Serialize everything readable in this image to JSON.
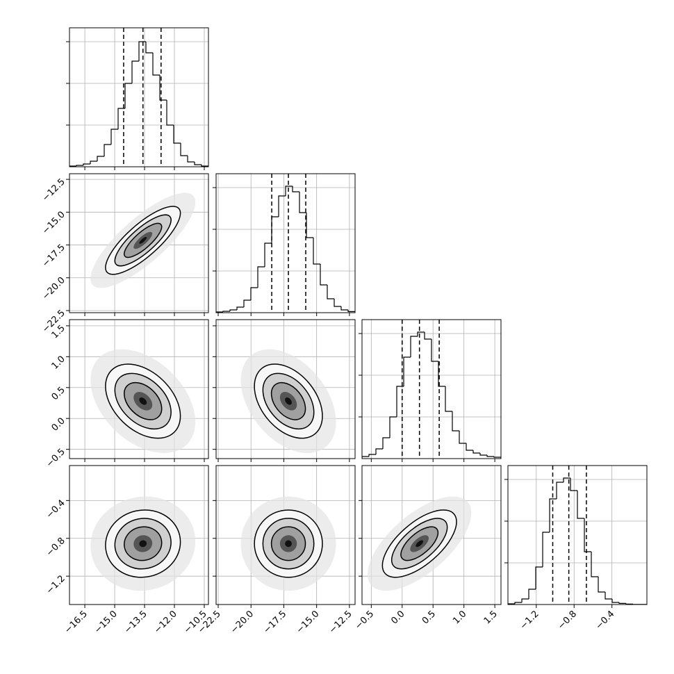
{
  "chart_data": {
    "type": "corner",
    "grid": true,
    "hist_ylim": [
      0,
      1000
    ],
    "hist_yticks": [
      300,
      600,
      900
    ],
    "parameters": [
      {
        "lim": [
          -17.27,
          -10.29
        ],
        "ticks": [
          {
            "value": -16.5,
            "label": "−16.5"
          },
          {
            "value": -15,
            "label": "−15.0"
          },
          {
            "value": -13.5,
            "label": "−13.5"
          },
          {
            "value": -12,
            "label": "−12.0"
          },
          {
            "value": -10.5,
            "label": "−10.5"
          }
        ],
        "quantiles": [
          -14.55,
          -13.58,
          -12.67
        ],
        "counts": [
          5,
          10,
          20,
          40,
          75,
          160,
          270,
          420,
          600,
          760,
          900,
          820,
          660,
          480,
          300,
          170,
          80,
          35,
          15,
          5
        ]
      },
      {
        "lim": [
          -22.66,
          -12.07
        ],
        "ticks": [
          {
            "value": -22.5,
            "label": "−22.5"
          },
          {
            "value": -20,
            "label": "−20.0"
          },
          {
            "value": -17.5,
            "label": "−17.5"
          },
          {
            "value": -15,
            "label": "−15.0"
          },
          {
            "value": -12.5,
            "label": "−12.5"
          }
        ],
        "quantiles": [
          -18.42,
          -17.15,
          -15.83
        ],
        "counts": [
          5,
          10,
          20,
          40,
          90,
          180,
          330,
          500,
          690,
          840,
          910,
          870,
          720,
          540,
          350,
          200,
          100,
          45,
          20,
          8
        ]
      },
      {
        "lim": [
          -0.65,
          1.6
        ],
        "ticks": [
          {
            "value": -0.5,
            "label": "−0.5"
          },
          {
            "value": 0,
            "label": "0.0"
          },
          {
            "value": 0.5,
            "label": "0.5"
          },
          {
            "value": 1,
            "label": "1.0"
          },
          {
            "value": 1.5,
            "label": "1.5"
          }
        ],
        "quantiles": [
          0.0,
          0.28,
          0.6
        ],
        "counts": [
          15,
          30,
          70,
          150,
          300,
          520,
          730,
          880,
          910,
          860,
          700,
          520,
          340,
          200,
          110,
          60,
          40,
          25,
          15,
          10
        ]
      },
      {
        "lim": [
          -1.5,
          -0.03
        ],
        "ticks": [
          {
            "value": -1.2,
            "label": "−1.2"
          },
          {
            "value": -0.8,
            "label": "−0.8"
          },
          {
            "value": -0.4,
            "label": "−0.4"
          }
        ],
        "quantiles": [
          -1.026,
          -0.856,
          -0.67
        ],
        "counts": [
          5,
          15,
          40,
          110,
          270,
          520,
          760,
          880,
          910,
          820,
          620,
          380,
          200,
          90,
          40,
          15,
          8,
          3,
          1,
          1
        ]
      }
    ],
    "panels": [
      {
        "x": 0,
        "y": 1,
        "correlation": 0.8
      },
      {
        "x": 0,
        "y": 2,
        "correlation": -0.4
      },
      {
        "x": 1,
        "y": 2,
        "correlation": -0.4
      },
      {
        "x": 0,
        "y": 3,
        "correlation": 0.05
      },
      {
        "x": 1,
        "y": 3,
        "correlation": 0
      },
      {
        "x": 2,
        "y": 3,
        "correlation": 0.65
      }
    ]
  }
}
